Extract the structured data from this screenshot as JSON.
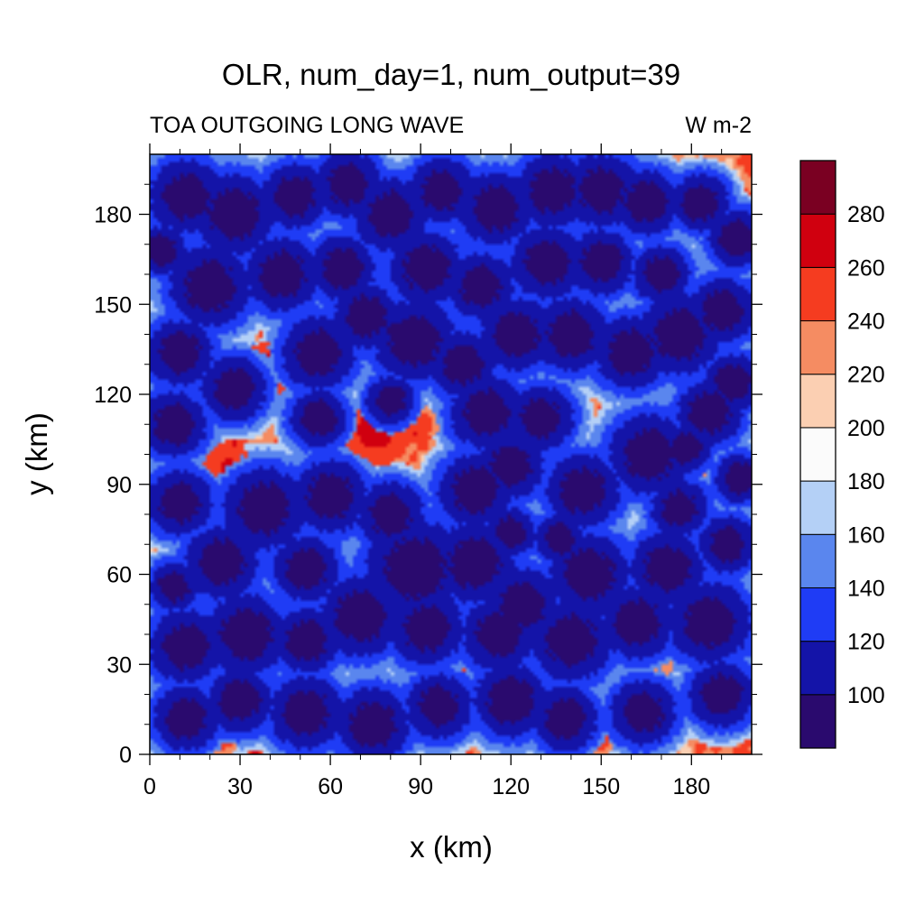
{
  "chart_data": {
    "type": "heatmap",
    "title": "OLR, num_day=1, num_output=39",
    "subtitle_left": "TOA OUTGOING LONG WAVE",
    "subtitle_right": "W m-2",
    "xlabel": "x (km)",
    "ylabel": "y (km)",
    "xlim": [
      0,
      200
    ],
    "ylim": [
      0,
      200
    ],
    "x_ticks": [
      "0",
      "30",
      "60",
      "90",
      "120",
      "150",
      "180"
    ],
    "y_ticks": [
      "0",
      "30",
      "60",
      "90",
      "120",
      "150",
      "180"
    ],
    "grid": false,
    "legend": "right",
    "colorbar": {
      "labels": [
        "100",
        "120",
        "140",
        "160",
        "180",
        "200",
        "220",
        "240",
        "260",
        "280"
      ],
      "colors": [
        "#2a0a6e",
        "#1414a8",
        "#1f3cf5",
        "#5a86ee",
        "#b4d0f6",
        "#fbfbfb",
        "#fbcfb2",
        "#f58c62",
        "#f53c20",
        "#d0000f",
        "#7a0022"
      ]
    },
    "clouds": [
      [
        12,
        186,
        9
      ],
      [
        28,
        180,
        10
      ],
      [
        48,
        186,
        8
      ],
      [
        66,
        190,
        8
      ],
      [
        80,
        180,
        9
      ],
      [
        97,
        188,
        8
      ],
      [
        115,
        182,
        9
      ],
      [
        134,
        188,
        9
      ],
      [
        150,
        188,
        9
      ],
      [
        165,
        184,
        8
      ],
      [
        183,
        184,
        7
      ],
      [
        195,
        172,
        7
      ],
      [
        4,
        168,
        6
      ],
      [
        20,
        156,
        10
      ],
      [
        44,
        160,
        9
      ],
      [
        64,
        162,
        8
      ],
      [
        92,
        162,
        9
      ],
      [
        110,
        156,
        8
      ],
      [
        132,
        164,
        9
      ],
      [
        150,
        164,
        8
      ],
      [
        170,
        160,
        7
      ],
      [
        190,
        148,
        8
      ],
      [
        10,
        134,
        8
      ],
      [
        28,
        122,
        8
      ],
      [
        56,
        134,
        9
      ],
      [
        72,
        146,
        8
      ],
      [
        88,
        138,
        10
      ],
      [
        104,
        130,
        8
      ],
      [
        122,
        140,
        9
      ],
      [
        140,
        140,
        9
      ],
      [
        160,
        134,
        9
      ],
      [
        176,
        140,
        10
      ],
      [
        194,
        124,
        7
      ],
      [
        8,
        110,
        8
      ],
      [
        56,
        112,
        7
      ],
      [
        80,
        118,
        6
      ],
      [
        112,
        114,
        9
      ],
      [
        130,
        112,
        8
      ],
      [
        166,
        100,
        10
      ],
      [
        186,
        114,
        8
      ],
      [
        10,
        84,
        8
      ],
      [
        38,
        82,
        10
      ],
      [
        60,
        86,
        9
      ],
      [
        80,
        80,
        8
      ],
      [
        108,
        88,
        9
      ],
      [
        120,
        96,
        8
      ],
      [
        144,
        88,
        9
      ],
      [
        176,
        82,
        7
      ],
      [
        196,
        92,
        6
      ],
      [
        24,
        64,
        9
      ],
      [
        52,
        62,
        8
      ],
      [
        88,
        62,
        12
      ],
      [
        108,
        64,
        10
      ],
      [
        124,
        50,
        9
      ],
      [
        146,
        60,
        10
      ],
      [
        172,
        62,
        9
      ],
      [
        192,
        70,
        7
      ],
      [
        8,
        56,
        6
      ],
      [
        12,
        36,
        9
      ],
      [
        32,
        40,
        10
      ],
      [
        52,
        38,
        8
      ],
      [
        70,
        46,
        10
      ],
      [
        92,
        42,
        9
      ],
      [
        116,
        40,
        9
      ],
      [
        140,
        38,
        10
      ],
      [
        162,
        44,
        9
      ],
      [
        186,
        44,
        10
      ],
      [
        12,
        12,
        8
      ],
      [
        30,
        18,
        8
      ],
      [
        52,
        14,
        9
      ],
      [
        74,
        10,
        9
      ],
      [
        96,
        16,
        8
      ],
      [
        120,
        18,
        9
      ],
      [
        138,
        12,
        8
      ],
      [
        164,
        14,
        8
      ],
      [
        190,
        20,
        8
      ],
      [
        178,
        102,
        6
      ],
      [
        120,
        74,
        6
      ],
      [
        136,
        72,
        6
      ],
      [
        84,
        140,
        6
      ]
    ],
    "clear_zones": [
      [
        75,
        108,
        12,
        265
      ],
      [
        38,
        128,
        9,
        270
      ],
      [
        26,
        96,
        8,
        262
      ],
      [
        112,
        32,
        10,
        262
      ],
      [
        90,
        110,
        6,
        250
      ],
      [
        24,
        6,
        6,
        250
      ],
      [
        150,
        6,
        6,
        250
      ],
      [
        168,
        30,
        6,
        240
      ],
      [
        176,
        130,
        6,
        245
      ],
      [
        166,
        190,
        8,
        245
      ],
      [
        154,
        50,
        6,
        240
      ],
      [
        184,
        88,
        6,
        245
      ],
      [
        72,
        188,
        5,
        250
      ],
      [
        50,
        46,
        5,
        240
      ],
      [
        10,
        156,
        5,
        248
      ]
    ]
  }
}
